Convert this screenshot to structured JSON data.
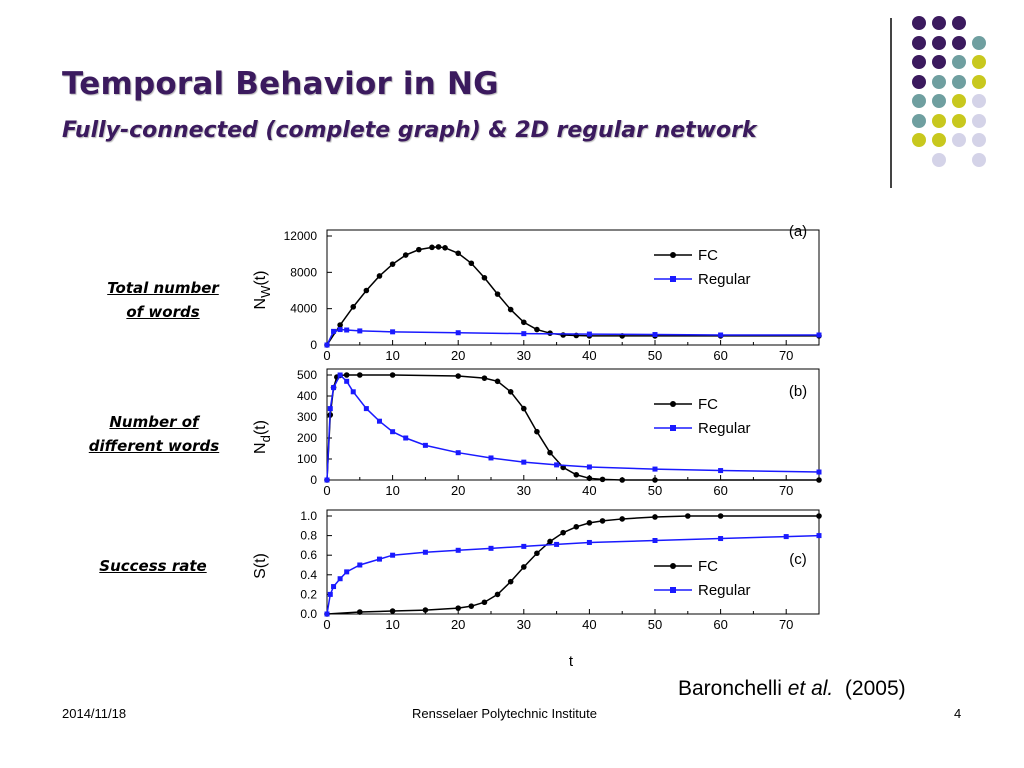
{
  "slide": {
    "title": "Temporal Behavior in NG",
    "subtitle": "Fully-connected (complete graph) & 2D regular network",
    "labels": {
      "total_words_1": "Total number",
      "total_words_2": "of words",
      "different_words_1": "Number of",
      "different_words_2": "different words",
      "success_rate": "Success rate"
    },
    "citation": {
      "author": "Baronchelli ",
      "etal": "et al.",
      "year": "  (2005)"
    },
    "footer": {
      "date": "2014/11/18",
      "institution": "Rensselaer Polytechnic Institute",
      "page": "4"
    },
    "decor_colors": {
      "purple": "#3b1a5e",
      "teal": "#6f9fa0",
      "yellow": "#c8c81e",
      "lavender": "#d4d3e8"
    }
  },
  "chart_data": [
    {
      "type": "line",
      "panel": "(a)",
      "ylabel_main": "N",
      "ylabel_sub": "W",
      "ylabel_tail": "(t)",
      "xlim": [
        0,
        75
      ],
      "ylim": [
        0,
        12000
      ],
      "xticks": [
        "0",
        "10",
        "20",
        "30",
        "40",
        "50",
        "60",
        "70"
      ],
      "yticks": [
        "0",
        "4000",
        "8000",
        "12000"
      ],
      "series": [
        {
          "name": "FC",
          "color": "#000000",
          "marker": "circle",
          "x": [
            0,
            2,
            4,
            6,
            8,
            10,
            12,
            14,
            16,
            17,
            18,
            20,
            22,
            24,
            26,
            28,
            30,
            32,
            34,
            36,
            38,
            40,
            45,
            50,
            60,
            75
          ],
          "y": [
            0,
            2200,
            4200,
            6000,
            7600,
            8900,
            9900,
            10500,
            10750,
            10800,
            10700,
            10100,
            9000,
            7400,
            5600,
            3900,
            2500,
            1700,
            1300,
            1100,
            1050,
            1000,
            1000,
            1000,
            1000,
            1000
          ]
        },
        {
          "name": "Regular",
          "color": "#1a1aff",
          "marker": "square",
          "x": [
            0,
            1,
            2,
            3,
            5,
            10,
            20,
            30,
            40,
            50,
            60,
            75
          ],
          "y": [
            0,
            1500,
            1700,
            1650,
            1550,
            1450,
            1350,
            1250,
            1200,
            1150,
            1100,
            1100
          ]
        }
      ]
    },
    {
      "type": "line",
      "panel": "(b)",
      "ylabel_main": "N",
      "ylabel_sub": "d",
      "ylabel_tail": "(t)",
      "xlim": [
        0,
        75
      ],
      "ylim": [
        0,
        500
      ],
      "xticks": [
        "0",
        "10",
        "20",
        "30",
        "40",
        "50",
        "60",
        "70"
      ],
      "yticks": [
        "0",
        "100",
        "200",
        "300",
        "400",
        "500"
      ],
      "series": [
        {
          "name": "FC",
          "color": "#000000",
          "marker": "circle",
          "x": [
            0,
            0.5,
            1,
            1.5,
            2,
            3,
            5,
            10,
            20,
            24,
            26,
            28,
            30,
            32,
            34,
            36,
            38,
            40,
            42,
            45,
            50,
            75
          ],
          "y": [
            0,
            310,
            440,
            490,
            498,
            500,
            500,
            500,
            495,
            485,
            470,
            420,
            340,
            230,
            130,
            60,
            25,
            8,
            3,
            0,
            0,
            0
          ]
        },
        {
          "name": "Regular",
          "color": "#1a1aff",
          "marker": "square",
          "x": [
            0,
            0.5,
            1,
            2,
            3,
            4,
            6,
            8,
            10,
            12,
            15,
            20,
            25,
            30,
            35,
            40,
            50,
            60,
            75
          ],
          "y": [
            0,
            340,
            440,
            500,
            470,
            420,
            340,
            280,
            230,
            200,
            165,
            130,
            105,
            85,
            72,
            62,
            52,
            45,
            38
          ]
        }
      ]
    },
    {
      "type": "line",
      "panel": "(c)",
      "ylabel_main": "S(t)",
      "ylabel_sub": "",
      "ylabel_tail": "",
      "xlabel": "t",
      "xlim": [
        0,
        75
      ],
      "ylim": [
        0,
        1.0
      ],
      "xticks": [
        "0",
        "10",
        "20",
        "30",
        "40",
        "50",
        "60",
        "70"
      ],
      "yticks": [
        "0.0",
        "0.2",
        "0.4",
        "0.6",
        "0.8",
        "1.0"
      ],
      "series": [
        {
          "name": "FC",
          "color": "#000000",
          "marker": "circle",
          "x": [
            0,
            5,
            10,
            15,
            20,
            22,
            24,
            26,
            28,
            30,
            32,
            34,
            36,
            38,
            40,
            42,
            45,
            50,
            55,
            60,
            75
          ],
          "y": [
            0,
            0.02,
            0.03,
            0.04,
            0.06,
            0.08,
            0.12,
            0.2,
            0.33,
            0.48,
            0.62,
            0.74,
            0.83,
            0.89,
            0.93,
            0.95,
            0.97,
            0.99,
            1.0,
            1.0,
            1.0
          ]
        },
        {
          "name": "Regular",
          "color": "#1a1aff",
          "marker": "square",
          "x": [
            0,
            0.5,
            1,
            2,
            3,
            5,
            8,
            10,
            15,
            20,
            25,
            30,
            35,
            40,
            50,
            60,
            70,
            75
          ],
          "y": [
            0,
            0.2,
            0.28,
            0.36,
            0.43,
            0.5,
            0.56,
            0.6,
            0.63,
            0.65,
            0.67,
            0.69,
            0.71,
            0.73,
            0.75,
            0.77,
            0.79,
            0.8
          ]
        }
      ]
    }
  ]
}
